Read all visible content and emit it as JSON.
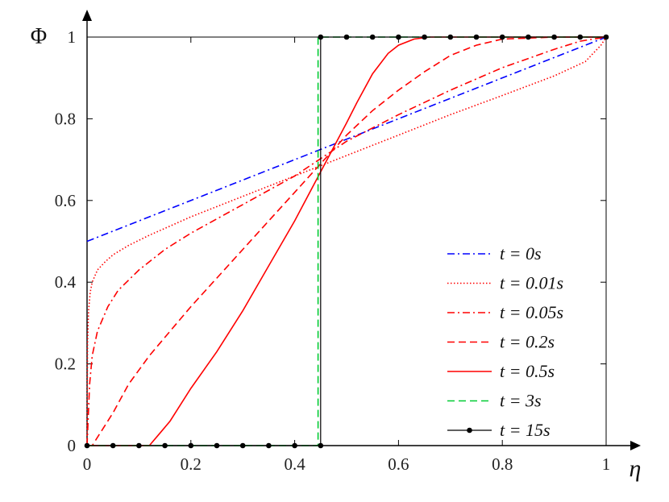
{
  "chart_data": {
    "type": "line",
    "title": "",
    "xlabel": "η",
    "ylabel": "Φ",
    "xlim": [
      0,
      1
    ],
    "ylim": [
      0,
      1
    ],
    "xticks": [
      0,
      0.2,
      0.4,
      0.6,
      0.8,
      1
    ],
    "yticks": [
      0,
      0.2,
      0.4,
      0.6,
      0.8,
      1
    ],
    "xtick_labels": [
      "0",
      "0.2",
      "0.4",
      "0.6",
      "0.8",
      "1"
    ],
    "ytick_labels": [
      "0",
      "0.2",
      "0.4",
      "0.6",
      "0.8",
      "1"
    ],
    "grid": false,
    "legend_position": "right",
    "series": [
      {
        "name": "t = 0s",
        "color": "#0000ff",
        "style": "dashdot",
        "x": [
          0,
          1
        ],
        "y": [
          0.5,
          1.0
        ]
      },
      {
        "name": "t = 0.01s",
        "color": "#ff0000",
        "style": "dotted",
        "x": [
          0,
          0.001,
          0.003,
          0.006,
          0.01,
          0.02,
          0.035,
          0.05,
          0.08,
          0.12,
          0.2,
          0.3,
          0.4,
          0.5,
          0.6,
          0.7,
          0.8,
          0.9,
          0.96,
          0.99,
          1.0
        ],
        "y": [
          0,
          0.25,
          0.33,
          0.375,
          0.4,
          0.43,
          0.45,
          0.467,
          0.49,
          0.515,
          0.56,
          0.61,
          0.66,
          0.71,
          0.76,
          0.81,
          0.857,
          0.905,
          0.94,
          0.98,
          1.0
        ]
      },
      {
        "name": "t = 0.05s",
        "color": "#ff0000",
        "style": "dashdot",
        "x": [
          0,
          0.005,
          0.01,
          0.02,
          0.04,
          0.06,
          0.1,
          0.15,
          0.2,
          0.3,
          0.4,
          0.5,
          0.6,
          0.7,
          0.8,
          0.9,
          0.95,
          1.0
        ],
        "y": [
          0,
          0.15,
          0.22,
          0.28,
          0.34,
          0.38,
          0.43,
          0.48,
          0.52,
          0.59,
          0.66,
          0.745,
          0.81,
          0.87,
          0.925,
          0.97,
          0.99,
          1.0
        ]
      },
      {
        "name": "t = 0.2s",
        "color": "#ff0000",
        "style": "dashed",
        "x": [
          0,
          0.01,
          0.03,
          0.05,
          0.08,
          0.12,
          0.16,
          0.2,
          0.25,
          0.3,
          0.35,
          0.4,
          0.45,
          0.5,
          0.55,
          0.6,
          0.65,
          0.7,
          0.75,
          0.8,
          0.9,
          1.0
        ],
        "y": [
          0,
          0.0,
          0.04,
          0.08,
          0.15,
          0.22,
          0.28,
          0.34,
          0.41,
          0.48,
          0.55,
          0.62,
          0.69,
          0.76,
          0.82,
          0.87,
          0.915,
          0.955,
          0.98,
          0.995,
          1.0,
          1.0
        ]
      },
      {
        "name": "t = 0.5s",
        "color": "#ff0000",
        "style": "solid",
        "x": [
          0,
          0.12,
          0.14,
          0.16,
          0.2,
          0.25,
          0.3,
          0.35,
          0.4,
          0.45,
          0.5,
          0.52,
          0.55,
          0.58,
          0.6,
          0.63,
          0.66,
          0.7,
          0.8,
          1.0
        ],
        "y": [
          0,
          0.0,
          0.03,
          0.06,
          0.14,
          0.23,
          0.33,
          0.44,
          0.55,
          0.67,
          0.79,
          0.84,
          0.91,
          0.96,
          0.98,
          0.995,
          1.0,
          1.0,
          1.0,
          1.0
        ]
      },
      {
        "name": "t = 3s",
        "color": "#00cc33",
        "style": "dashed",
        "x": [
          0,
          0.445,
          0.445,
          1.0
        ],
        "y": [
          0,
          0.0,
          1.0,
          1.0
        ]
      },
      {
        "name": "t = 15s",
        "color": "#000000",
        "style": "solid-dot",
        "x": [
          0,
          0.05,
          0.1,
          0.15,
          0.2,
          0.25,
          0.3,
          0.35,
          0.4,
          0.45,
          0.45,
          0.5,
          0.55,
          0.6,
          0.65,
          0.7,
          0.75,
          0.8,
          0.85,
          0.9,
          0.95,
          1.0
        ],
        "y": [
          0,
          0,
          0,
          0,
          0,
          0,
          0,
          0,
          0,
          0,
          1,
          1,
          1,
          1,
          1,
          1,
          1,
          1,
          1,
          1,
          1,
          1
        ]
      }
    ]
  }
}
